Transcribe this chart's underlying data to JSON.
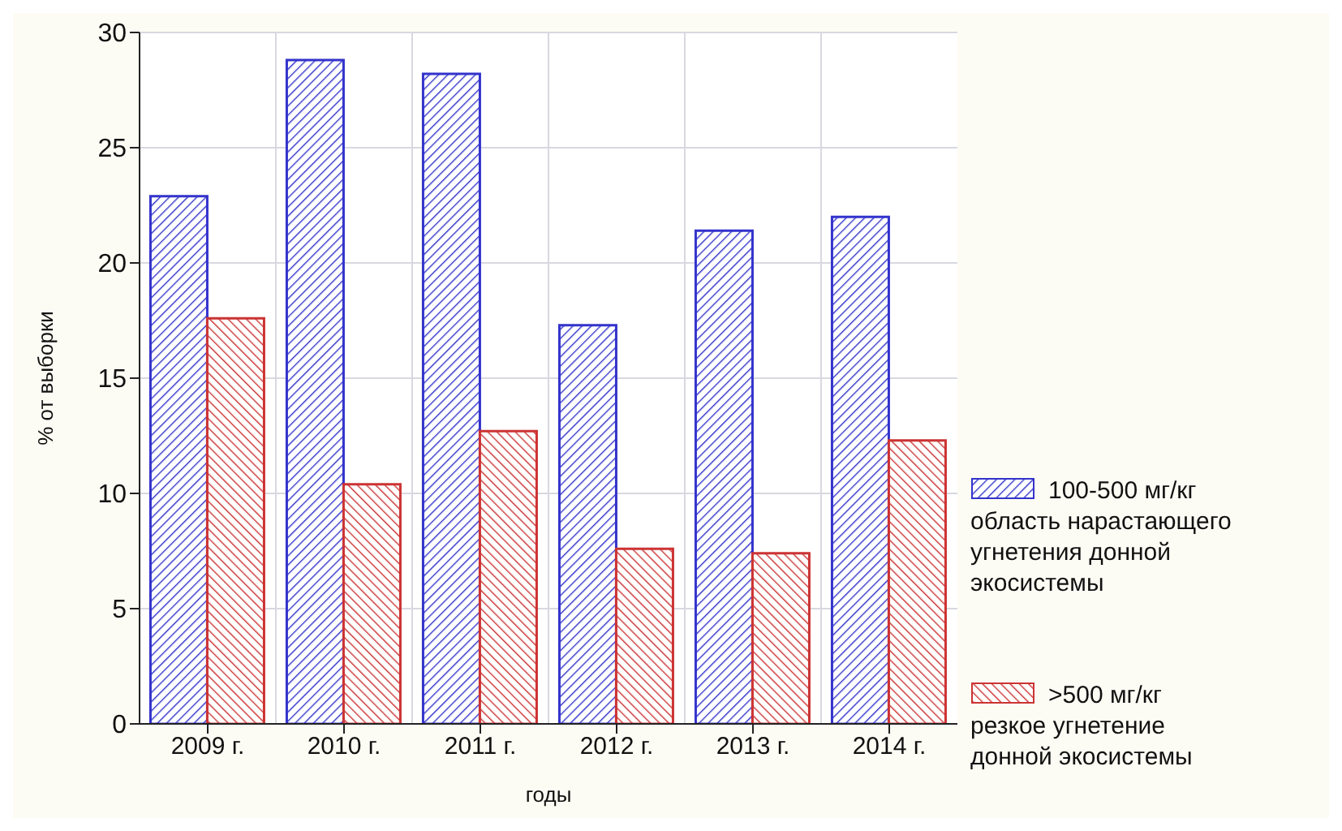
{
  "chart_data": {
    "type": "bar",
    "xlabel": "годы",
    "ylabel": "% от выборки",
    "categories": [
      "2009 г.",
      "2010 г.",
      "2011 г.",
      "2012 г.",
      "2013 г.",
      "2014 г."
    ],
    "series": [
      {
        "name": "100-500 мг/кг\nобласть нарастающего\nугнетения донной\nэкосистемы",
        "color": "#3333cc",
        "values": [
          22.9,
          28.8,
          28.2,
          17.3,
          21.4,
          22.0
        ]
      },
      {
        "name": ">500 мг/кг\nрезкое угнетение\n донной экосистемы",
        "color": "#cc3333",
        "values": [
          17.6,
          10.4,
          12.7,
          7.6,
          7.4,
          12.3
        ]
      }
    ],
    "ylim": [
      0,
      30
    ],
    "yticks": [
      0,
      5,
      10,
      15,
      20,
      25,
      30
    ],
    "grid": true,
    "legend": "right"
  }
}
